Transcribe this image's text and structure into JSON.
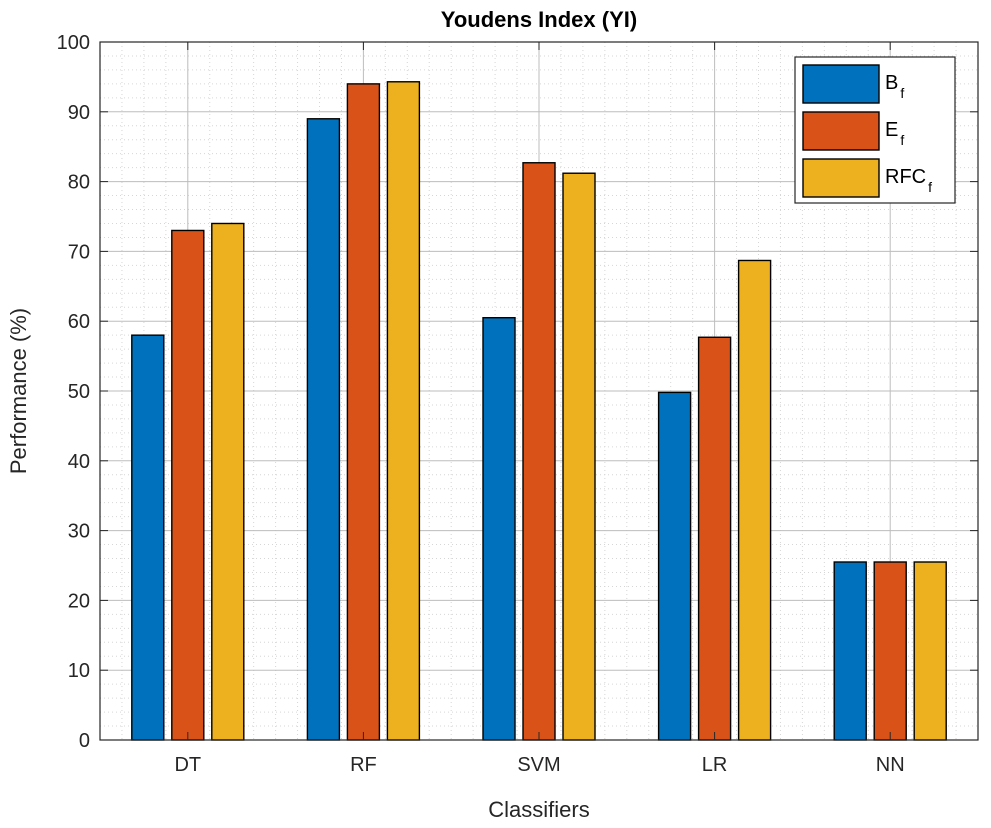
{
  "chart_data": {
    "type": "bar",
    "title": "Youdens Index (YI)",
    "xlabel": "Classifiers",
    "ylabel": "Performance (%)",
    "ylim": [
      0,
      100
    ],
    "yticks": [
      "0",
      "10",
      "20",
      "30",
      "40",
      "50",
      "60",
      "70",
      "80",
      "90",
      "100"
    ],
    "categories": [
      "DT",
      "RF",
      "SVM",
      "LR",
      "NN"
    ],
    "series": [
      {
        "name": "B",
        "name_sub": "f",
        "color": "#0072BD",
        "values": [
          58,
          89,
          60.5,
          49.8,
          25.5
        ]
      },
      {
        "name": "E",
        "name_sub": "f",
        "color": "#D95319",
        "values": [
          73,
          94,
          82.7,
          57.7,
          25.5
        ]
      },
      {
        "name": "RFC",
        "name_sub": "f",
        "color": "#EDB120",
        "values": [
          74,
          94.3,
          81.2,
          68.7,
          25.5
        ]
      }
    ],
    "grid": true,
    "minor_grid": true,
    "legend_position": "top-right"
  }
}
